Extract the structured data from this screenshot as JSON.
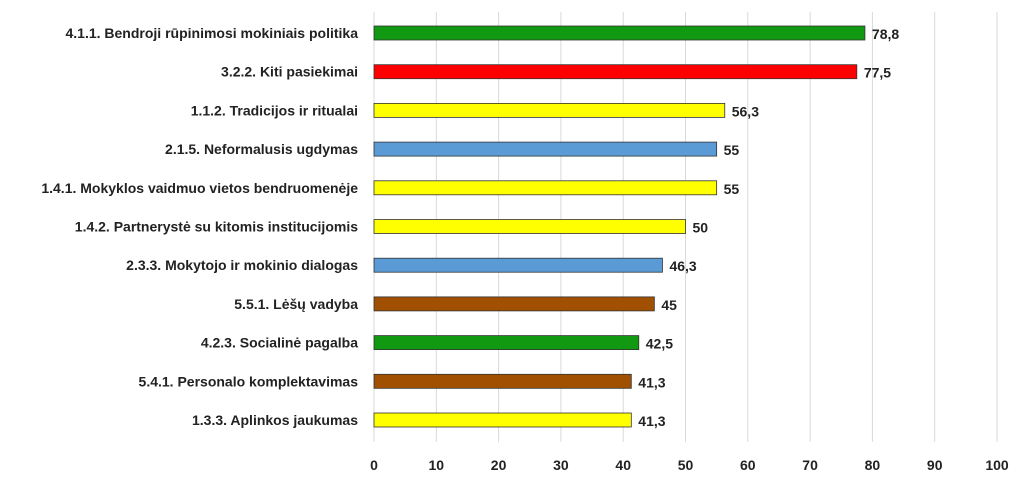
{
  "chart_data": {
    "type": "bar",
    "orientation": "horizontal",
    "categories": [
      "4.1.1. Bendroji rūpinimosi mokiniais politika",
      "3.2.2. Kiti pasiekimai",
      "1.1.2. Tradicijos ir ritualai",
      "2.1.5. Neformalusis ugdymas",
      "1.4.1. Mokyklos vaidmuo vietos bendruomenėje",
      "1.4.2. Partnerystė su kitomis institucijomis",
      "2.3.3. Mokytojo ir mokinio dialogas",
      "5.5.1. Lėšų vadyba",
      "4.2.3. Socialinė pagalba",
      "5.4.1. Personalo komplektavimas",
      "1.3.3. Aplinkos jaukumas"
    ],
    "values": [
      78.8,
      77.5,
      56.3,
      55,
      55,
      50,
      46.3,
      45,
      42.5,
      41.3,
      41.3
    ],
    "value_labels": [
      "78,8",
      "77,5",
      "56,3",
      "55",
      "55",
      "50",
      "46,3",
      "45",
      "42,5",
      "41,3",
      "41,3"
    ],
    "bar_colors": [
      "#119911",
      "#ff0000",
      "#ffff00",
      "#5b9bd5",
      "#ffff00",
      "#ffff00",
      "#5b9bd5",
      "#a05000",
      "#119911",
      "#a05000",
      "#ffff00"
    ],
    "xlim": [
      0,
      100
    ],
    "xticks": [
      "0",
      "10",
      "20",
      "30",
      "40",
      "50",
      "60",
      "70",
      "80",
      "90",
      "100"
    ],
    "xtick_values": [
      0,
      10,
      20,
      30,
      40,
      50,
      60,
      70,
      80,
      90,
      100
    ],
    "grid": "vertical",
    "legend": "none",
    "title": "",
    "xlabel": "",
    "ylabel": ""
  }
}
